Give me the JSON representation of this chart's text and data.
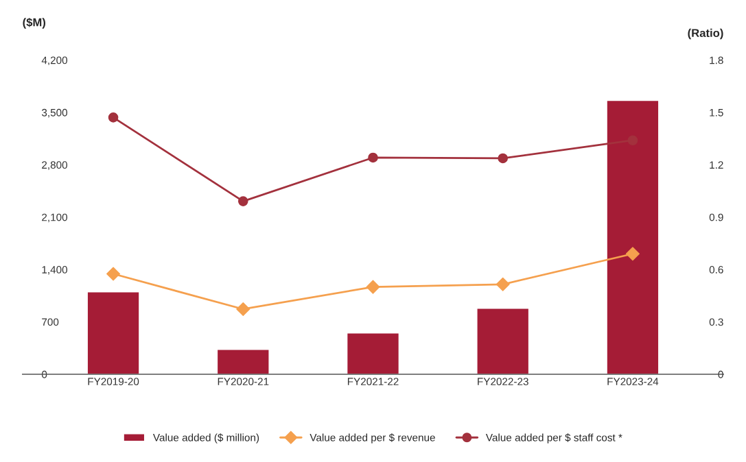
{
  "chart_data": {
    "type": "bar",
    "ylabel": "($M)",
    "y2label": "(Ratio)",
    "categories": [
      "FY2019-20",
      "FY2020-21",
      "FY2021-22",
      "FY2022-23",
      "FY2023-24"
    ],
    "series": [
      {
        "name": "Value added ($ million)",
        "color": "#a51c36",
        "values": [
          1100,
          330,
          550,
          880,
          3660
        ]
      },
      {
        "name": "Value added per $ revenue",
        "type": "line",
        "axis": "y2",
        "marker": "diamond",
        "color": "#f5a04e",
        "values": [
          0.575,
          0.373,
          0.5,
          0.515,
          0.69
        ]
      },
      {
        "name": "Value added per $ staff cost *",
        "type": "line",
        "axis": "y2",
        "marker": "circle",
        "color": "#a3313d",
        "values": [
          1.471,
          0.991,
          1.241,
          1.237,
          1.34
        ]
      }
    ],
    "ylim": [
      0,
      4200
    ],
    "yticks": [
      0,
      700,
      {
        "value": 1400,
        "label": "1,400"
      },
      {
        "value": 2100,
        "label": "2,100"
      },
      {
        "value": 2800,
        "label": "2,800"
      },
      {
        "value": 3500,
        "label": "3,500"
      },
      {
        "value": 4200,
        "label": "4,200"
      }
    ],
    "y2lim": [
      0,
      1.8
    ],
    "y2ticks": [
      0,
      0.3,
      0.6,
      0.9,
      1.2,
      1.5,
      1.8
    ],
    "grid": false,
    "legend": "bottom",
    "line_style": "solid"
  }
}
